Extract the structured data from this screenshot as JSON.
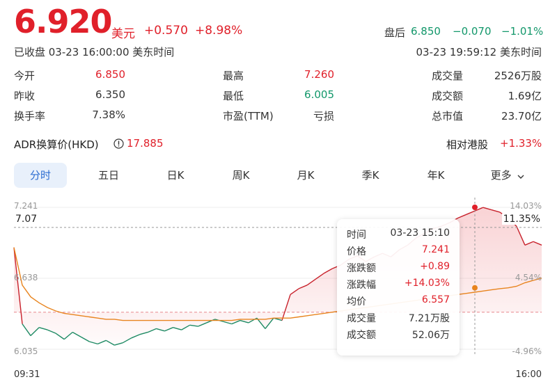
{
  "header": {
    "price": "6.920",
    "unit": "美元",
    "change": "+0.570",
    "change_pct": "+8.98%",
    "close_status": "已收盘 03-23 16:00:00 美东时间",
    "afterhours_label": "盘后",
    "afterhours_price": "6.850",
    "afterhours_change": "−0.070",
    "afterhours_pct": "−1.01%",
    "afterhours_time": "03-23 19:59:12 美东时间"
  },
  "stats": [
    {
      "label": "今开",
      "value": "6.850",
      "color": "red"
    },
    {
      "label": "最高",
      "value": "7.260",
      "color": "red"
    },
    {
      "label": "成交量",
      "value": "2526万股",
      "color": "gray"
    },
    {
      "label": "昨收",
      "value": "6.350",
      "color": "gray"
    },
    {
      "label": "最低",
      "value": "6.005",
      "color": "green"
    },
    {
      "label": "成交额",
      "value": "1.69亿",
      "color": "gray"
    },
    {
      "label": "换手率",
      "value": "7.38%",
      "color": "gray"
    },
    {
      "label": "市盈(TTM)",
      "value": "亏损",
      "color": "gray"
    },
    {
      "label": "总市值",
      "value": "23.70亿",
      "color": "gray"
    }
  ],
  "adr": {
    "label": "ADR换算价(HKD)",
    "value": "17.885",
    "rel_label": "相对港股",
    "rel_value": "+1.33%"
  },
  "tabs": [
    "分时",
    "五日",
    "日K",
    "周K",
    "月K",
    "季K",
    "年K",
    "更多"
  ],
  "chart_data": {
    "type": "line",
    "y_left_ticks": [
      "7.241",
      "6.638",
      "6.035"
    ],
    "y_right_ticks": [
      "14.03%",
      "4.54%",
      "-4.96%"
    ],
    "x_ticks": [
      "09:31",
      "16:00"
    ],
    "crosshair_price": "7.07",
    "crosshair_pct": "11.35%",
    "prev_close": 6.35,
    "ylim": [
      6.035,
      7.241
    ],
    "price": [
      6.9,
      6.25,
      6.15,
      6.22,
      6.2,
      6.17,
      6.12,
      6.18,
      6.14,
      6.1,
      6.08,
      6.11,
      6.07,
      6.09,
      6.13,
      6.16,
      6.18,
      6.21,
      6.19,
      6.22,
      6.2,
      6.24,
      6.23,
      6.26,
      6.29,
      6.27,
      6.25,
      6.28,
      6.26,
      6.3,
      6.21,
      6.3,
      6.28,
      6.5,
      6.55,
      6.58,
      6.63,
      6.68,
      6.72,
      6.75,
      6.8,
      6.83,
      6.78,
      6.82,
      6.85,
      6.82,
      6.88,
      6.92,
      6.98,
      7.02,
      7.06,
      7.08,
      7.11,
      7.15,
      7.18,
      7.21,
      7.24,
      7.22,
      7.2,
      7.15,
      7.08,
      6.92,
      6.95,
      6.92
    ],
    "avg": [
      6.9,
      6.58,
      6.48,
      6.43,
      6.39,
      6.36,
      6.34,
      6.33,
      6.32,
      6.31,
      6.3,
      6.29,
      6.29,
      6.28,
      6.28,
      6.28,
      6.28,
      6.28,
      6.28,
      6.28,
      6.28,
      6.28,
      6.28,
      6.28,
      6.28,
      6.28,
      6.28,
      6.29,
      6.29,
      6.29,
      6.29,
      6.3,
      6.3,
      6.3,
      6.31,
      6.32,
      6.33,
      6.34,
      6.35,
      6.36,
      6.37,
      6.38,
      6.39,
      6.4,
      6.41,
      6.42,
      6.43,
      6.44,
      6.45,
      6.46,
      6.47,
      6.48,
      6.49,
      6.5,
      6.51,
      6.52,
      6.53,
      6.54,
      6.55,
      6.557,
      6.57,
      6.6,
      6.62,
      6.64
    ]
  },
  "tooltip": [
    {
      "label": "时间",
      "value": "03-23 15:10",
      "color": "gray"
    },
    {
      "label": "价格",
      "value": "7.241",
      "color": "red"
    },
    {
      "label": "涨跌额",
      "value": "+0.89",
      "color": "red"
    },
    {
      "label": "涨跌幅",
      "value": "+14.03%",
      "color": "red"
    },
    {
      "label": "均价",
      "value": "6.557",
      "color": "red"
    },
    {
      "label": "成交量",
      "value": "7.21万股",
      "color": "gray"
    },
    {
      "label": "成交额",
      "value": "52.06万",
      "color": "gray"
    }
  ]
}
